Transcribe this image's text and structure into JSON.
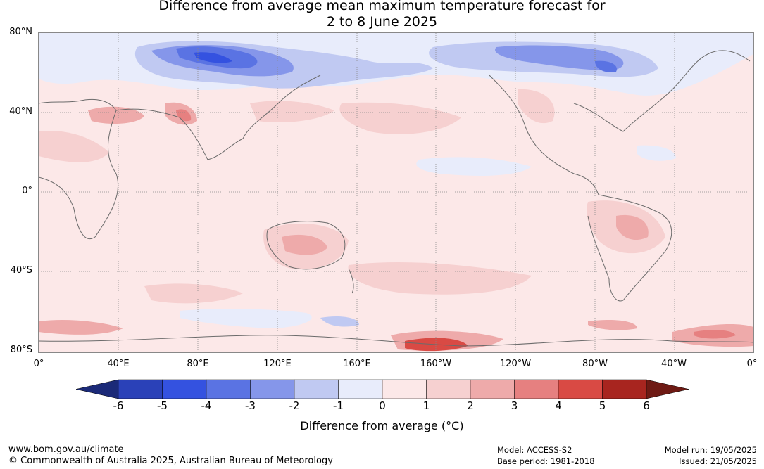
{
  "title": {
    "line1": "Difference from average mean maximum temperature forecast for",
    "line2": "2 to 8 June 2025"
  },
  "map": {
    "lat_labels": [
      "80°N",
      "40°N",
      "0°",
      "40°S",
      "80°S"
    ],
    "lon_labels": [
      "0°",
      "40°E",
      "80°E",
      "120°E",
      "160°E",
      "160°W",
      "120°W",
      "80°W",
      "40°W",
      "0°"
    ],
    "colors": {
      "land_outline": "#6b6b6b",
      "grid": "#888888"
    }
  },
  "colorbar": {
    "ticks": [
      "-6",
      "-5",
      "-4",
      "-3",
      "-2",
      "-1",
      "0",
      "1",
      "2",
      "3",
      "4",
      "5",
      "6"
    ],
    "colors": [
      "#1b2a78",
      "#2a41b8",
      "#3452e0",
      "#5a73e3",
      "#8596ea",
      "#c0c9f2",
      "#e8ecfb",
      "#fce8e8",
      "#f6d0d0",
      "#eeaaaa",
      "#e68080",
      "#d94a44",
      "#a8251f",
      "#6e1a14"
    ],
    "label": "Difference from average (°C)"
  },
  "footer": {
    "website": "www.bom.gov.au/climate",
    "copyright": "© Commonwealth of Australia 2025, Australian Bureau of Meteorology",
    "model": "Model: ACCESS-S2",
    "base_period": "Base period: 1981-2018",
    "model_run": "Model run: 19/05/2025",
    "issued": "Issued: 21/05/2025"
  }
}
